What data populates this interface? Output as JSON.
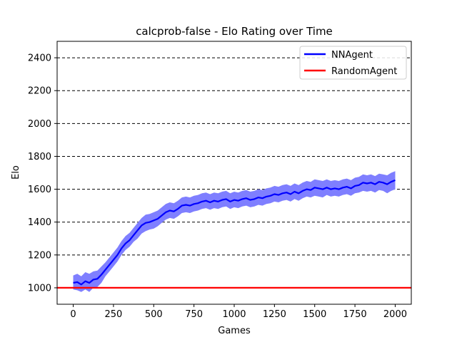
{
  "chart_data": {
    "type": "line",
    "title": "calcprob-false - Elo Rating over Time",
    "xlabel": "Games",
    "ylabel": "Elo",
    "xlim": [
      -100,
      2100
    ],
    "ylim": [
      900,
      2500
    ],
    "xticks": [
      0,
      250,
      500,
      750,
      1000,
      1250,
      1500,
      1750,
      2000
    ],
    "yticks": [
      1000,
      1200,
      1400,
      1600,
      1800,
      2000,
      2200,
      2400
    ],
    "grid": "horizontal-dashed",
    "legend_position": "top-right",
    "series": [
      {
        "name": "NNAgent",
        "color": "#0000ff",
        "band_color": "#7f7fff",
        "x": [
          0,
          25,
          50,
          75,
          100,
          125,
          150,
          175,
          200,
          225,
          250,
          275,
          300,
          325,
          350,
          375,
          400,
          425,
          450,
          475,
          500,
          525,
          550,
          575,
          600,
          625,
          650,
          675,
          700,
          725,
          750,
          775,
          800,
          825,
          850,
          875,
          900,
          925,
          950,
          975,
          1000,
          1025,
          1050,
          1075,
          1100,
          1125,
          1150,
          1175,
          1200,
          1225,
          1250,
          1275,
          1300,
          1325,
          1350,
          1375,
          1400,
          1425,
          1450,
          1475,
          1500,
          1525,
          1550,
          1575,
          1600,
          1625,
          1650,
          1675,
          1700,
          1725,
          1750,
          1775,
          1800,
          1825,
          1850,
          1875,
          1900,
          1925,
          1950,
          1975,
          2000
        ],
        "y": [
          1030,
          1035,
          1020,
          1040,
          1030,
          1050,
          1055,
          1080,
          1110,
          1140,
          1170,
          1200,
          1240,
          1270,
          1290,
          1320,
          1350,
          1380,
          1395,
          1400,
          1410,
          1420,
          1440,
          1460,
          1470,
          1465,
          1480,
          1500,
          1505,
          1500,
          1510,
          1515,
          1525,
          1530,
          1520,
          1530,
          1525,
          1535,
          1540,
          1525,
          1535,
          1530,
          1540,
          1545,
          1535,
          1540,
          1550,
          1545,
          1555,
          1560,
          1570,
          1565,
          1575,
          1580,
          1570,
          1585,
          1575,
          1590,
          1600,
          1595,
          1610,
          1605,
          1600,
          1610,
          1600,
          1605,
          1600,
          1610,
          1615,
          1605,
          1620,
          1625,
          1640,
          1635,
          1640,
          1630,
          1645,
          1640,
          1630,
          1645,
          1655
        ],
        "y_lower": [
          990,
          985,
          975,
          990,
          975,
          1000,
          1005,
          1030,
          1070,
          1100,
          1130,
          1160,
          1200,
          1230,
          1250,
          1280,
          1300,
          1330,
          1345,
          1355,
          1360,
          1375,
          1395,
          1415,
          1425,
          1420,
          1435,
          1455,
          1460,
          1455,
          1465,
          1470,
          1480,
          1485,
          1475,
          1485,
          1480,
          1490,
          1495,
          1480,
          1490,
          1485,
          1495,
          1500,
          1490,
          1495,
          1505,
          1500,
          1510,
          1515,
          1525,
          1520,
          1530,
          1535,
          1525,
          1540,
          1530,
          1545,
          1555,
          1550,
          1560,
          1555,
          1550,
          1565,
          1555,
          1560,
          1555,
          1565,
          1570,
          1560,
          1575,
          1580,
          1590,
          1585,
          1590,
          1580,
          1595,
          1590,
          1575,
          1590,
          1600
        ],
        "y_upper": [
          1075,
          1085,
          1070,
          1095,
          1085,
          1100,
          1105,
          1130,
          1155,
          1185,
          1215,
          1245,
          1285,
          1315,
          1335,
          1365,
          1395,
          1425,
          1445,
          1450,
          1460,
          1470,
          1490,
          1510,
          1520,
          1515,
          1530,
          1550,
          1555,
          1550,
          1560,
          1565,
          1575,
          1580,
          1570,
          1580,
          1575,
          1585,
          1590,
          1575,
          1585,
          1580,
          1590,
          1595,
          1585,
          1590,
          1600,
          1595,
          1605,
          1610,
          1620,
          1615,
          1625,
          1630,
          1620,
          1635,
          1625,
          1640,
          1650,
          1645,
          1660,
          1655,
          1650,
          1660,
          1650,
          1655,
          1650,
          1660,
          1665,
          1655,
          1670,
          1675,
          1690,
          1685,
          1690,
          1680,
          1695,
          1690,
          1685,
          1700,
          1710
        ]
      },
      {
        "name": "RandomAgent",
        "color": "#ff0000",
        "x": [
          -100,
          2100
        ],
        "y": [
          1000,
          1000
        ]
      }
    ]
  }
}
